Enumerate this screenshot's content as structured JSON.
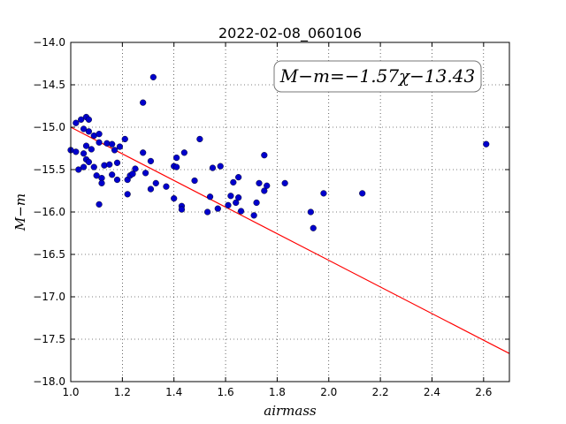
{
  "chart_data": {
    "type": "scatter",
    "title": "2022-02-08_060106",
    "xlabel": "airmass",
    "ylabel": "M−m",
    "xlim": [
      1.0,
      2.7
    ],
    "ylim": [
      -18.0,
      -14.0
    ],
    "x_ticks": [
      1.0,
      1.2,
      1.4,
      1.6,
      1.8,
      2.0,
      2.2,
      2.4,
      2.6
    ],
    "x_tick_labels": [
      "1.0",
      "1.2",
      "1.4",
      "1.6",
      "1.8",
      "2.0",
      "2.2",
      "2.4",
      "2.6"
    ],
    "y_ticks": [
      -18.0,
      -17.5,
      -17.0,
      -16.5,
      -16.0,
      -15.5,
      -15.0,
      -14.5,
      -14.0
    ],
    "y_tick_labels": [
      "−18.0",
      "−17.5",
      "−17.0",
      "−16.5",
      "−16.0",
      "−15.5",
      "−15.0",
      "−14.5",
      "−14.0"
    ],
    "grid": true,
    "annotation": "M−m=−1.57χ−13.43",
    "fit_line": {
      "slope": -1.57,
      "intercept": -13.43,
      "color": "#ff0000"
    },
    "point_color": "#0000cc",
    "points": [
      [
        1.0,
        -15.27
      ],
      [
        1.02,
        -14.95
      ],
      [
        1.02,
        -15.29
      ],
      [
        1.03,
        -15.5
      ],
      [
        1.04,
        -14.91
      ],
      [
        1.05,
        -15.02
      ],
      [
        1.05,
        -15.31
      ],
      [
        1.05,
        -15.47
      ],
      [
        1.06,
        -14.88
      ],
      [
        1.06,
        -15.22
      ],
      [
        1.06,
        -15.38
      ],
      [
        1.07,
        -14.91
      ],
      [
        1.07,
        -15.05
      ],
      [
        1.07,
        -15.41
      ],
      [
        1.08,
        -15.26
      ],
      [
        1.09,
        -15.1
      ],
      [
        1.09,
        -15.47
      ],
      [
        1.1,
        -15.57
      ],
      [
        1.11,
        -15.08
      ],
      [
        1.11,
        -15.18
      ],
      [
        1.11,
        -15.91
      ],
      [
        1.12,
        -15.6
      ],
      [
        1.12,
        -15.66
      ],
      [
        1.13,
        -15.45
      ],
      [
        1.14,
        -15.19
      ],
      [
        1.15,
        -15.44
      ],
      [
        1.16,
        -15.56
      ],
      [
        1.16,
        -15.2
      ],
      [
        1.17,
        -15.27
      ],
      [
        1.18,
        -15.42
      ],
      [
        1.18,
        -15.62
      ],
      [
        1.19,
        -15.23
      ],
      [
        1.21,
        -15.14
      ],
      [
        1.22,
        -15.79
      ],
      [
        1.22,
        -15.62
      ],
      [
        1.23,
        -15.57
      ],
      [
        1.24,
        -15.55
      ],
      [
        1.25,
        -15.49
      ],
      [
        1.28,
        -14.71
      ],
      [
        1.28,
        -15.3
      ],
      [
        1.29,
        -15.54
      ],
      [
        1.31,
        -15.4
      ],
      [
        1.31,
        -15.73
      ],
      [
        1.32,
        -14.41
      ],
      [
        1.33,
        -15.66
      ],
      [
        1.37,
        -15.7
      ],
      [
        1.4,
        -15.84
      ],
      [
        1.4,
        -15.46
      ],
      [
        1.41,
        -15.36
      ],
      [
        1.41,
        -15.47
      ],
      [
        1.43,
        -15.93
      ],
      [
        1.43,
        -15.97
      ],
      [
        1.44,
        -15.3
      ],
      [
        1.48,
        -15.63
      ],
      [
        1.5,
        -15.14
      ],
      [
        1.53,
        -16.0
      ],
      [
        1.54,
        -15.82
      ],
      [
        1.55,
        -15.48
      ],
      [
        1.57,
        -15.96
      ],
      [
        1.58,
        -15.46
      ],
      [
        1.61,
        -15.92
      ],
      [
        1.62,
        -15.81
      ],
      [
        1.63,
        -15.65
      ],
      [
        1.64,
        -15.89
      ],
      [
        1.65,
        -15.59
      ],
      [
        1.65,
        -15.83
      ],
      [
        1.66,
        -15.99
      ],
      [
        1.71,
        -16.04
      ],
      [
        1.72,
        -15.89
      ],
      [
        1.73,
        -15.66
      ],
      [
        1.75,
        -15.33
      ],
      [
        1.75,
        -15.75
      ],
      [
        1.76,
        -15.69
      ],
      [
        1.83,
        -15.66
      ],
      [
        1.93,
        -16.0
      ],
      [
        1.94,
        -16.19
      ],
      [
        1.98,
        -15.78
      ],
      [
        2.13,
        -15.78
      ],
      [
        2.61,
        -15.2
      ]
    ]
  }
}
